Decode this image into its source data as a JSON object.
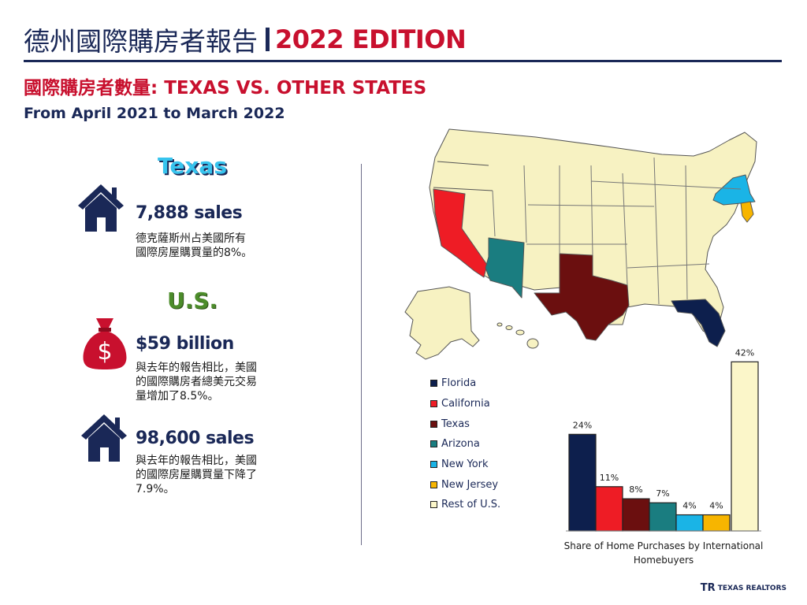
{
  "header": {
    "title_zh": "德州國際購房者報告",
    "edition": "2022 EDITION",
    "subtitle": "國際購房者數量: TEXAS VS. OTHER STATES",
    "date_range": "From April 2021 to March 2022"
  },
  "texas": {
    "heading": "Texas",
    "sales": "7,888 sales",
    "desc_line1": "德克薩斯州占美國所有",
    "desc_line2": "國際房屋購買量的8%。"
  },
  "us": {
    "heading": "U.S.",
    "dollars": "$59 billion",
    "dollars_desc_line1": "與去年的報告相比，美國",
    "dollars_desc_line2": "的國際購房者總美元交易",
    "dollars_desc_line3": "量增加了8.5%。",
    "sales": "98,600 sales",
    "sales_desc_line1": "與去年的報告相比，美國",
    "sales_desc_line2": "的國際房屋購買量下降了",
    "sales_desc_line3": "7.9%。"
  },
  "icons": {
    "house": "house-icon",
    "money": "money-bag-icon",
    "money_symbol": "$",
    "map": "us-map"
  },
  "chart_data": {
    "type": "bar",
    "categories": [
      "Florida",
      "California",
      "Texas",
      "Arizona",
      "New York",
      "New Jersey",
      "Rest of U.S."
    ],
    "values": [
      24,
      11,
      8,
      7,
      4,
      4,
      42
    ],
    "value_labels": [
      "24%",
      "11%",
      "8%",
      "7%",
      "4%",
      "4%",
      "42%"
    ],
    "colors": [
      "#0d1f4d",
      "#ee1c25",
      "#6b0f0f",
      "#1a7d80",
      "#1ab4e6",
      "#f7b500",
      "#fbf6c9"
    ],
    "xlabel": "Share of Home Purchases by International Homebuyers",
    "ylabel": "",
    "ylim": [
      0,
      45
    ],
    "legend_position": "left",
    "grid": false
  },
  "caption": {
    "line1": "Share of Home Purchases by International",
    "line2": "Homebuyers"
  },
  "colors": {
    "navy": "#1a2857",
    "red": "#c8102e",
    "texas_blue": "#37c4ee",
    "us_green": "#4c8c2b",
    "map_fill": "#f7f2c2"
  },
  "footer": {
    "logo_mark": "TR",
    "logo": "TEXAS REALTORS"
  }
}
